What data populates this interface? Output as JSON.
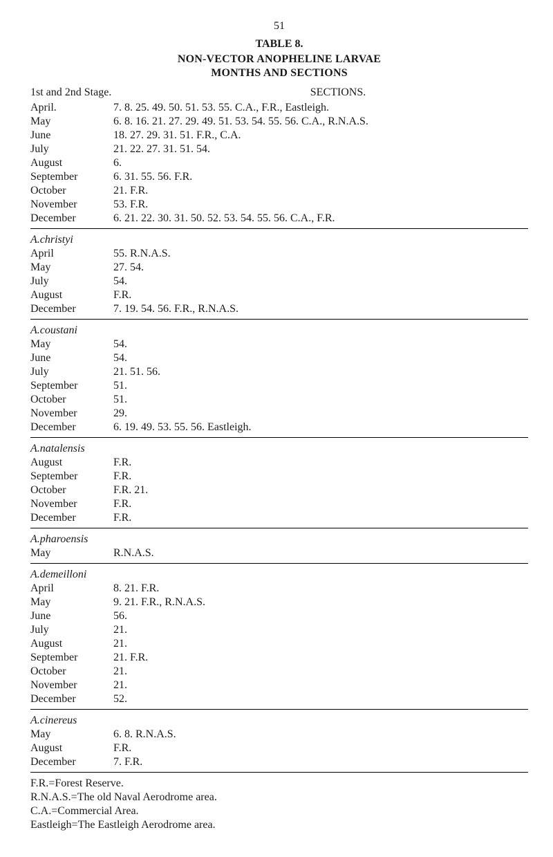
{
  "page_number": "51",
  "table_label": "TABLE 8.",
  "title_line1": "NON-VECTOR ANOPHELINE LARVAE",
  "title_line2": "MONTHS AND SECTIONS",
  "header_left": "1st and 2nd Stage.",
  "header_right": "SECTIONS.",
  "sections": [
    {
      "species": "",
      "rows": [
        {
          "month": "April.",
          "vals": "7. 8. 25. 49. 50. 51. 53. 55. C.A., F.R., Eastleigh."
        },
        {
          "month": "May",
          "vals": "6. 8. 16. 21. 27. 29. 49. 51. 53. 54. 55. 56. C.A., R.N.A.S."
        },
        {
          "month": "June",
          "vals": "18. 27. 29. 31. 51. F.R., C.A."
        },
        {
          "month": "July",
          "vals": "21. 22. 27. 31. 51. 54."
        },
        {
          "month": "August",
          "vals": "6."
        },
        {
          "month": "September",
          "vals": "6. 31. 55. 56. F.R."
        },
        {
          "month": "October",
          "vals": "21. F.R."
        },
        {
          "month": "November",
          "vals": "53. F.R."
        },
        {
          "month": "December",
          "vals": "6. 21. 22. 30. 31. 50. 52. 53. 54. 55. 56. C.A., F.R."
        }
      ]
    },
    {
      "species": "A.christyi",
      "rows": [
        {
          "month": "April",
          "vals": "55. R.N.A.S."
        },
        {
          "month": "May",
          "vals": "27. 54."
        },
        {
          "month": "July",
          "vals": "54."
        },
        {
          "month": "August",
          "vals": "F.R."
        },
        {
          "month": "December",
          "vals": "7. 19. 54. 56. F.R., R.N.A.S."
        }
      ]
    },
    {
      "species": "A.coustani",
      "rows": [
        {
          "month": "May",
          "vals": "54."
        },
        {
          "month": "June",
          "vals": "54."
        },
        {
          "month": "July",
          "vals": "21. 51. 56."
        },
        {
          "month": "September",
          "vals": "51."
        },
        {
          "month": "October",
          "vals": "51."
        },
        {
          "month": "November",
          "vals": "29."
        },
        {
          "month": "December",
          "vals": "6. 19. 49. 53. 55. 56. Eastleigh."
        }
      ]
    },
    {
      "species": "A.natalensis",
      "rows": [
        {
          "month": "August",
          "vals": "F.R."
        },
        {
          "month": "September",
          "vals": "F.R."
        },
        {
          "month": "October",
          "vals": "F.R. 21."
        },
        {
          "month": "November",
          "vals": "F.R."
        },
        {
          "month": "December",
          "vals": "F.R."
        }
      ]
    },
    {
      "species": "A.pharoensis",
      "rows": [
        {
          "month": "May",
          "vals": "R.N.A.S."
        }
      ]
    },
    {
      "species": "A.demeilloni",
      "rows": [
        {
          "month": "April",
          "vals": "8. 21. F.R."
        },
        {
          "month": "May",
          "vals": "9. 21. F.R., R.N.A.S."
        },
        {
          "month": "June",
          "vals": "56."
        },
        {
          "month": "July",
          "vals": "21."
        },
        {
          "month": "August",
          "vals": "21."
        },
        {
          "month": "September",
          "vals": "21. F.R."
        },
        {
          "month": "October",
          "vals": "21."
        },
        {
          "month": "November",
          "vals": "21."
        },
        {
          "month": "December",
          "vals": "52."
        }
      ]
    },
    {
      "species": "A.cinereus",
      "rows": [
        {
          "month": "May",
          "vals": "6. 8. R.N.A.S."
        },
        {
          "month": "August",
          "vals": "F.R."
        },
        {
          "month": "December",
          "vals": "7. F.R."
        }
      ]
    }
  ],
  "footer": [
    "F.R.=Forest Reserve.",
    "R.N.A.S.=The old Naval Aerodrome area.",
    "C.A.=Commercial Area.",
    "Eastleigh=The Eastleigh Aerodrome area."
  ]
}
